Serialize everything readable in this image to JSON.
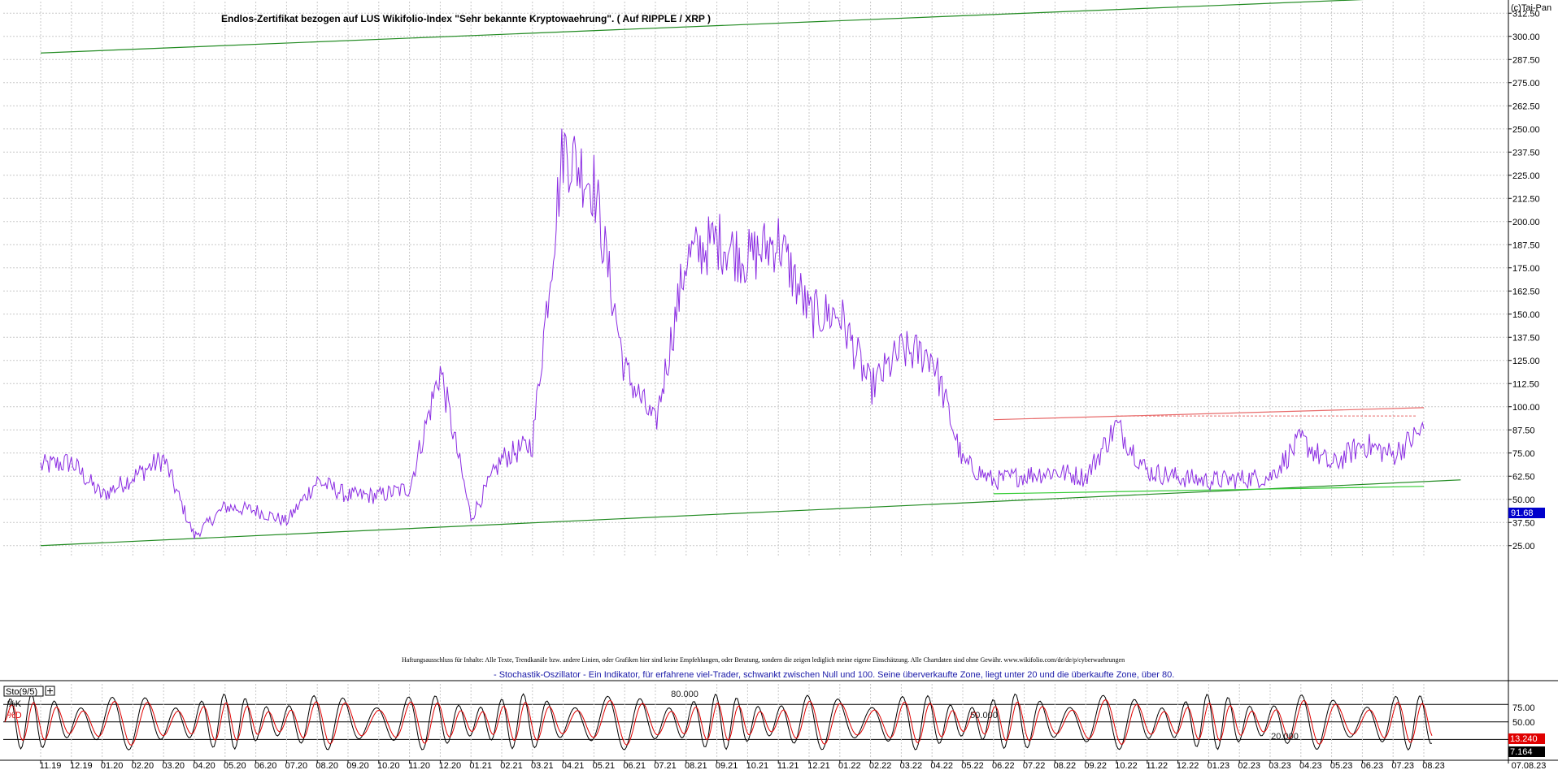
{
  "copyright": "(c)Tai-Pan",
  "chart_data": [
    {
      "type": "line",
      "title": "Endlos-Zertifikat bezogen auf LUS Wikifolio-Index \"Sehr bekannte Kryptowaehrung\". ( Auf RIPPLE / XRP )",
      "ylim": [
        18.75,
        318.75
      ],
      "yticks": [
        "312.50",
        "300.00",
        "287.50",
        "275.00",
        "262.50",
        "250.00",
        "237.50",
        "225.00",
        "212.50",
        "200.00",
        "187.50",
        "175.00",
        "162.50",
        "150.00",
        "137.50",
        "125.00",
        "112.50",
        "100.00",
        "87.50",
        "75.00",
        "62.50",
        "50.00",
        "37.50",
        "25.00"
      ],
      "grid": true,
      "last_value_label": "91.68",
      "series": [
        {
          "color": "#8a2be2",
          "x": [
            "11.19",
            "12.19",
            "01.20",
            "02.20",
            "03.20",
            "04.20",
            "05.20",
            "06.20",
            "07.20",
            "08.20",
            "09.20",
            "10.20",
            "11.20",
            "12.20",
            "01.21",
            "02.21",
            "03.21",
            "04.21",
            "05.21",
            "06.21",
            "07.21",
            "08.21",
            "09.21",
            "10.21",
            "11.21",
            "12.21",
            "01.22",
            "02.22",
            "03.22",
            "04.22",
            "05.22",
            "06.22",
            "07.22",
            "08.22",
            "09.22",
            "10.22",
            "11.22",
            "12.22",
            "01.23",
            "02.23",
            "03.23",
            "04.23",
            "05.23",
            "06.23",
            "07.23",
            "08.23"
          ],
          "values": [
            68,
            70,
            52,
            62,
            72,
            30,
            46,
            44,
            38,
            60,
            52,
            52,
            56,
            120,
            40,
            72,
            80,
            240,
            220,
            120,
            90,
            180,
            190,
            180,
            190,
            150,
            150,
            110,
            130,
            128,
            70,
            60,
            63,
            65,
            62,
            90,
            65,
            62,
            60,
            61,
            62,
            82,
            68,
            80,
            74,
            88
          ]
        }
      ],
      "trendlines": [
        {
          "name": "upper-channel",
          "color": "#228b22",
          "from": [
            "11.19",
            291
          ],
          "to": [
            "08.23+",
            322
          ]
        },
        {
          "name": "lower-channel",
          "color": "#228b22",
          "from": [
            "11.19",
            25
          ],
          "to": [
            "08.23+",
            60.5
          ]
        },
        {
          "name": "resistance",
          "color": "#e86a6a",
          "from": [
            "06.22",
            93
          ],
          "to": [
            "08.23",
            99.5
          ]
        },
        {
          "name": "support",
          "color": "#33cc33",
          "from": [
            "06.22",
            53
          ],
          "to": [
            "08.23",
            57
          ]
        }
      ]
    },
    {
      "type": "line",
      "title": "Sto(9/5)",
      "ylim": [
        -10,
        115
      ],
      "yticks": [
        "75.00",
        "50.00"
      ],
      "levels": [
        "80.000",
        "50.000",
        "20.000"
      ],
      "legend": [
        "%K",
        "%D"
      ],
      "last_values": {
        "k": "13.240",
        "d": "7.164"
      },
      "series": [
        {
          "name": "%K",
          "color": "#000000"
        },
        {
          "name": "%D",
          "color": "#e00000"
        }
      ]
    }
  ],
  "x_axis_labels": [
    "11.19",
    "12.19",
    "01.20",
    "02.20",
    "03.20",
    "04.20",
    "05.20",
    "06.20",
    "07.20",
    "08.20",
    "09.20",
    "10.20",
    "11.20",
    "12.20",
    "01.21",
    "02.21",
    "03.21",
    "04.21",
    "05.21",
    "06.21",
    "07.21",
    "08.21",
    "09.21",
    "10.21",
    "11.21",
    "12.21",
    "01.22",
    "02.22",
    "03.22",
    "04.22",
    "05.22",
    "06.22",
    "07.22",
    "08.22",
    "09.22",
    "10.22",
    "11.22",
    "12.22",
    "01.23",
    "02.23",
    "03.23",
    "04.23",
    "05.23",
    "06.23",
    "07.23",
    "08.23"
  ],
  "x_axis_end_label": "07.08.23",
  "disclaimer": "Haftungsausschluss für Inhalte: Alle Texte, Trendkanäle bzw. andere Linien, oder Grafiken hier sind keine Empfehlungen, oder Beratung, sondern die zeigen lediglich meine eigene Einschätzung. Alle Chartdaten sind ohne Gewähr. www.wikifolio.com/de/de/p/cyberwaehrungen",
  "oscillator_note": "- Stochastik-Oszillator - Ein Indikator, für erfahrene viel-Trader, schwankt zwischen Null und 100. Seine überverkaufte Zone, liegt unter 20 und die überkaufte Zone, über 80.",
  "colors": {
    "price": "#8a2be2",
    "channel": "#228b22",
    "resistance": "#e86a6a",
    "support": "#33cc33",
    "k": "#000000",
    "d": "#e00000",
    "note": "#1a1aa8",
    "label_bg": "#0000cc",
    "d_label_bg": "#e00000",
    "k_label_bg": "#000000"
  }
}
